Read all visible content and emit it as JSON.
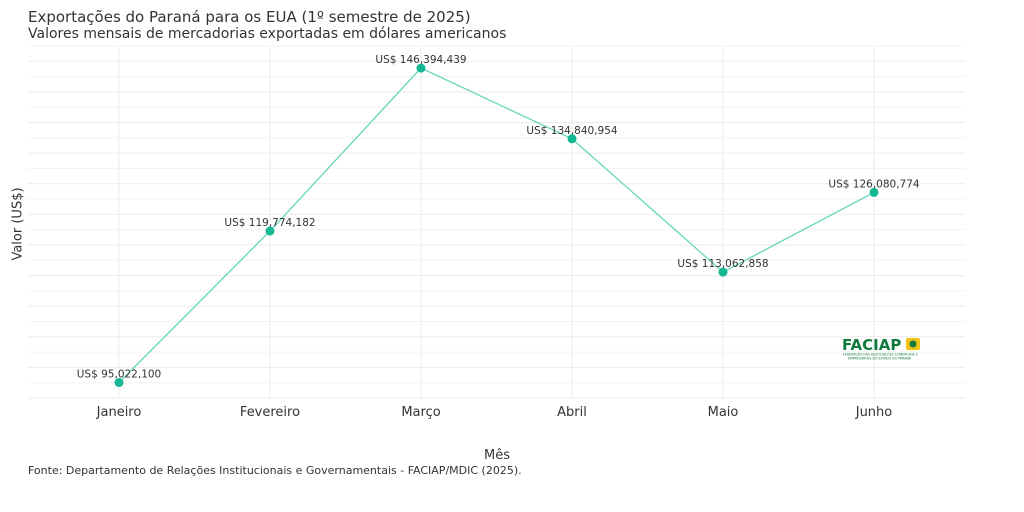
{
  "chart_data": {
    "type": "line",
    "title": "Exportações do Paraná para os EUA (1º semestre de 2025)",
    "subtitle": "Valores mensais de mercadorias exportadas em dólares americanos",
    "xlabel": "Mês",
    "ylabel": "Valor (US$)",
    "caption": "Fonte: Departamento de Relações Institucionais e Governamentais - FACIAP/MDIC (2025).",
    "categories": [
      "Janeiro",
      "Fevereiro",
      "Março",
      "Abril",
      "Maio",
      "Junho"
    ],
    "values": [
      95022100,
      119774182,
      146394439,
      134840954,
      113062858,
      126080774
    ],
    "data_labels": [
      "US$ 95,022,100",
      "US$ 119,774,182",
      "US$ 146,394,439",
      "US$ 134,840,954",
      "US$ 113,062,858",
      "US$ 126,080,774"
    ],
    "ylim": [
      92500000,
      150000000
    ],
    "grid": true,
    "y_tick_labels_shown": false,
    "line_color": "#66d6b8",
    "point_color": "#14b894"
  },
  "logo": {
    "name": "FACIAP",
    "tagline": "FEDERAÇÃO DAS ASSOCIAÇÕES COMERCIAIS E EMPRESARIAIS DO ESTADO DO PARANÁ",
    "primary_color": "#0f7a3c",
    "accent_color": "#f2c418"
  }
}
